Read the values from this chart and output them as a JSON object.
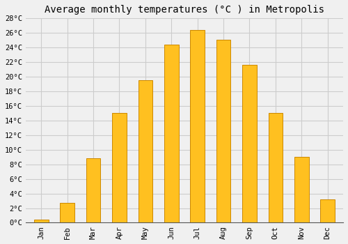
{
  "title": "Average monthly temperatures (°C ) in Metropolis",
  "months": [
    "Jan",
    "Feb",
    "Mar",
    "Apr",
    "May",
    "Jun",
    "Jul",
    "Aug",
    "Sep",
    "Oct",
    "Nov",
    "Dec"
  ],
  "values": [
    0.4,
    2.7,
    8.8,
    15.0,
    19.5,
    24.4,
    26.4,
    25.1,
    21.6,
    15.0,
    9.0,
    3.2
  ],
  "bar_color": "#FFC020",
  "bar_edge_color": "#CC8800",
  "background_color": "#f0f0f0",
  "grid_color": "#cccccc",
  "title_fontsize": 10,
  "tick_fontsize": 7.5,
  "ytick_step": 2,
  "ymin": 0,
  "ymax": 28,
  "bar_width": 0.55,
  "font_family": "monospace"
}
